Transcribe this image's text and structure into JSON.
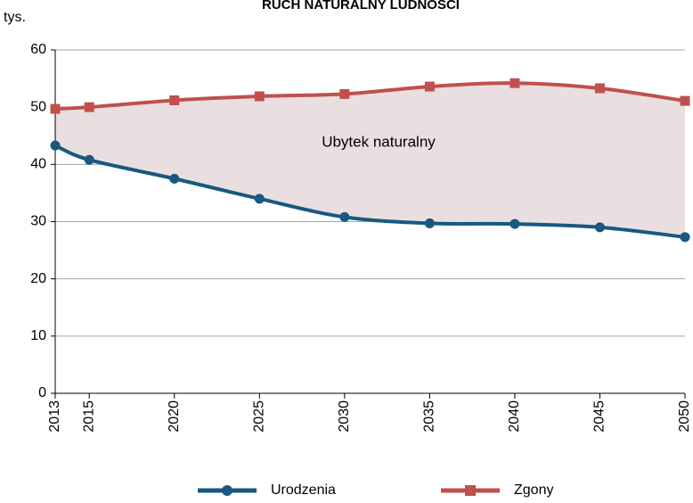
{
  "chart_data": {
    "type": "line",
    "title": "RUCH NATURALNY LUDNOŚCI",
    "y_label": "tys.",
    "annotation": "Ubytek naturalny",
    "x": [
      2013,
      2015,
      2020,
      2025,
      2030,
      2035,
      2040,
      2045,
      2050
    ],
    "xlim": [
      2013,
      2050
    ],
    "xticks": [
      2013,
      2015,
      2020,
      2025,
      2030,
      2035,
      2040,
      2045,
      2050
    ],
    "series": [
      {
        "name": "Urodzenia",
        "color": "#17597f",
        "marker": "circle",
        "values": [
          43.3,
          40.8,
          37.5,
          34.0,
          30.8,
          29.7,
          29.6,
          29.0,
          27.3
        ]
      },
      {
        "name": "Zgony",
        "color": "#c0504d",
        "marker": "square",
        "values": [
          49.7,
          50.0,
          51.2,
          51.9,
          52.3,
          53.6,
          54.2,
          53.3,
          51.1
        ]
      }
    ],
    "fill_color": "#e9dfe1",
    "ylim": [
      0,
      60
    ],
    "yticks": [
      0,
      10,
      20,
      30,
      40,
      50,
      60
    ],
    "grid": true
  }
}
